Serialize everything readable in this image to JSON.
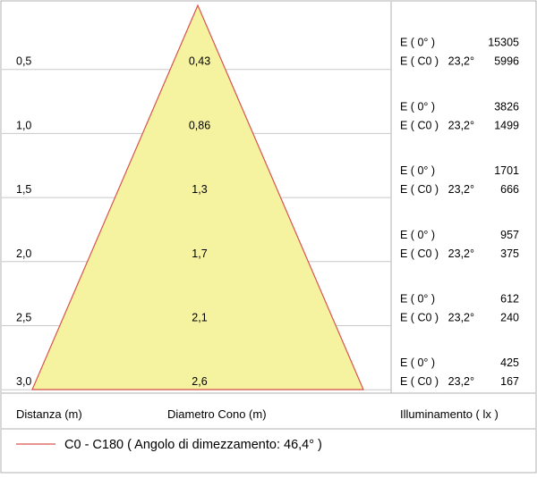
{
  "rows": [
    {
      "distance": "0,5",
      "diameter": "0,43",
      "e0_label": "E ( 0° )",
      "e0_value": "15305",
      "ec0_label": "E ( C0 )",
      "angle": "23,2°",
      "ec0_value": "5996"
    },
    {
      "distance": "1,0",
      "diameter": "0,86",
      "e0_label": "E ( 0° )",
      "e0_value": "3826",
      "ec0_label": "E ( C0 )",
      "angle": "23,2°",
      "ec0_value": "1499"
    },
    {
      "distance": "1,5",
      "diameter": "1,3",
      "e0_label": "E ( 0° )",
      "e0_value": "1701",
      "ec0_label": "E ( C0 )",
      "angle": "23,2°",
      "ec0_value": "666"
    },
    {
      "distance": "2,0",
      "diameter": "1,7",
      "e0_label": "E ( 0° )",
      "e0_value": "957",
      "ec0_label": "E ( C0 )",
      "angle": "23,2°",
      "ec0_value": "375"
    },
    {
      "distance": "2,5",
      "diameter": "2,1",
      "e0_label": "E ( 0° )",
      "e0_value": "612",
      "ec0_label": "E ( C0 )",
      "angle": "23,2°",
      "ec0_value": "240"
    },
    {
      "distance": "3,0",
      "diameter": "2,6",
      "e0_label": "E ( 0° )",
      "e0_value": "425",
      "ec0_label": "E ( C0 )",
      "angle": "23,2°",
      "ec0_value": "167"
    }
  ],
  "footer": {
    "distance_header": "Distanza (m)",
    "diameter_header": "Diametro Cono (m)",
    "illuminance_header": "Illuminamento ( lx )"
  },
  "legend": {
    "text": "C0 - C180  ( Angolo di dimezzamento: 46,4° )",
    "line_color": "#d9534f"
  },
  "colors": {
    "cone_fill": "#f5f3a0",
    "cone_stroke": "#d9534f",
    "grid": "#c8c8c8",
    "divider": "#b0b0b0"
  }
}
